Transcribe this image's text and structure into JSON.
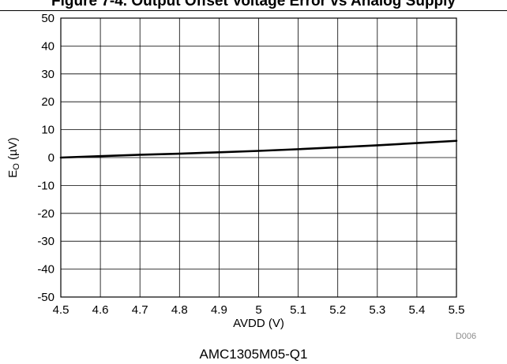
{
  "header": {
    "title": "Figure 7-4. Output Offset Voltage Error vs Analog Supply"
  },
  "caption": "AMC1305M05-Q1",
  "figure_code": "D006",
  "chart_data": {
    "type": "line",
    "xlabel": "AVDD (V)",
    "ylabel_main": "E",
    "ylabel_sub": "O",
    "ylabel_unit": " (µV)",
    "xlim": [
      4.5,
      5.5
    ],
    "ylim": [
      -50,
      50
    ],
    "xticks": [
      4.5,
      4.6,
      4.7,
      4.8,
      4.9,
      5.0,
      5.1,
      5.2,
      5.3,
      5.4,
      5.5
    ],
    "xtick_labels": [
      "4.5",
      "4.6",
      "4.7",
      "4.8",
      "4.9",
      "5",
      "5.1",
      "5.2",
      "5.3",
      "5.4",
      "5.5"
    ],
    "yticks": [
      50,
      40,
      30,
      20,
      10,
      0,
      -10,
      -20,
      -30,
      -40,
      -50
    ],
    "ytick_labels": [
      "50",
      "40",
      "30",
      "20",
      "10",
      "0",
      "-10",
      "-20",
      "-30",
      "-40",
      "-50"
    ],
    "grid": true,
    "series": [
      {
        "x": [
          4.5,
          4.6,
          4.7,
          4.8,
          4.9,
          5.0,
          5.1,
          5.2,
          5.3,
          5.4,
          5.5
        ],
        "y": [
          0.0,
          0.5,
          1.0,
          1.4,
          1.9,
          2.4,
          3.0,
          3.7,
          4.4,
          5.2,
          6.0
        ],
        "color": "#000000"
      }
    ]
  }
}
